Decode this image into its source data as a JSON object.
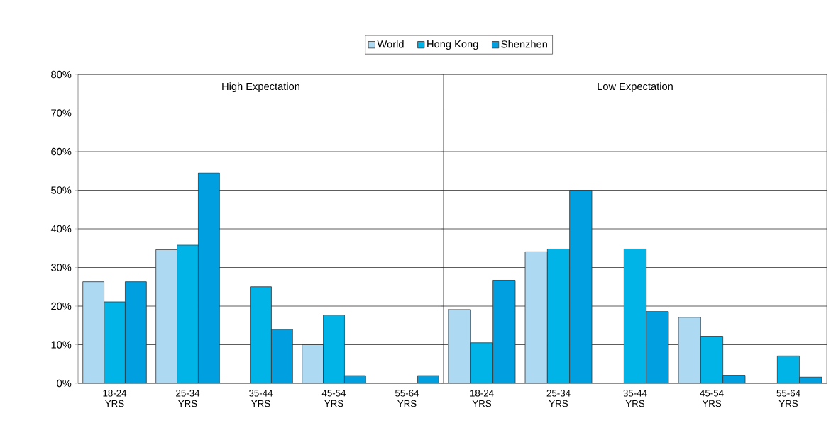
{
  "chart_data": [
    {
      "type": "bar",
      "title": "High Expectation",
      "categories": [
        "18-24 YRS",
        "25-34 YRS",
        "35-44 YRS",
        "45-54 YRS",
        "55-64 YRS"
      ],
      "series": [
        {
          "name": "World",
          "color": "#add9f3",
          "values": [
            26.3,
            34.6,
            null,
            10,
            null
          ]
        },
        {
          "name": "Hong Kong",
          "color": "#00b4e8",
          "values": [
            21.1,
            35.8,
            25.0,
            17.7,
            null
          ]
        },
        {
          "name": "Shenzhen",
          "color": "#00a0e0",
          "values": [
            26.3,
            54.5,
            14.0,
            2,
            2
          ]
        }
      ],
      "ylim": [
        0,
        80
      ],
      "yticks": [
        {
          "value": 0,
          "label": "0%"
        },
        {
          "value": 10,
          "label": "10%"
        },
        {
          "value": 20,
          "label": "20%"
        },
        {
          "value": 30,
          "label": "30%"
        },
        {
          "value": 40,
          "label": "40%"
        },
        {
          "value": 50,
          "label": "50%"
        },
        {
          "value": 60,
          "label": "60%"
        },
        {
          "value": 70,
          "label": "70%"
        },
        {
          "value": 80,
          "label": "80%"
        }
      ],
      "grid": "y",
      "legend": "top"
    },
    {
      "type": "bar",
      "title": "Low Expectation",
      "categories": [
        "18-24 YRS",
        "25-34 YRS",
        "35-44 YRS",
        "45-54 YRS",
        "55-64 YRS"
      ],
      "series": [
        {
          "color": "#add9f3",
          "values": [
            19.1,
            34.1,
            null,
            17.1,
            null
          ]
        },
        {
          "color": "#00b4e8",
          "values": [
            10.5,
            34.8,
            34.8,
            12.2,
            7.1
          ]
        },
        {
          "color": "#00a0e0",
          "values": [
            26.7,
            50.0,
            18.6,
            2.1,
            1.6
          ]
        }
      ],
      "ylim": [
        0,
        80
      ],
      "yticks": [
        0,
        10,
        20,
        30,
        40,
        50,
        60,
        70,
        80
      ],
      "grid": "y",
      "tick_labels": "x"
    }
  ]
}
